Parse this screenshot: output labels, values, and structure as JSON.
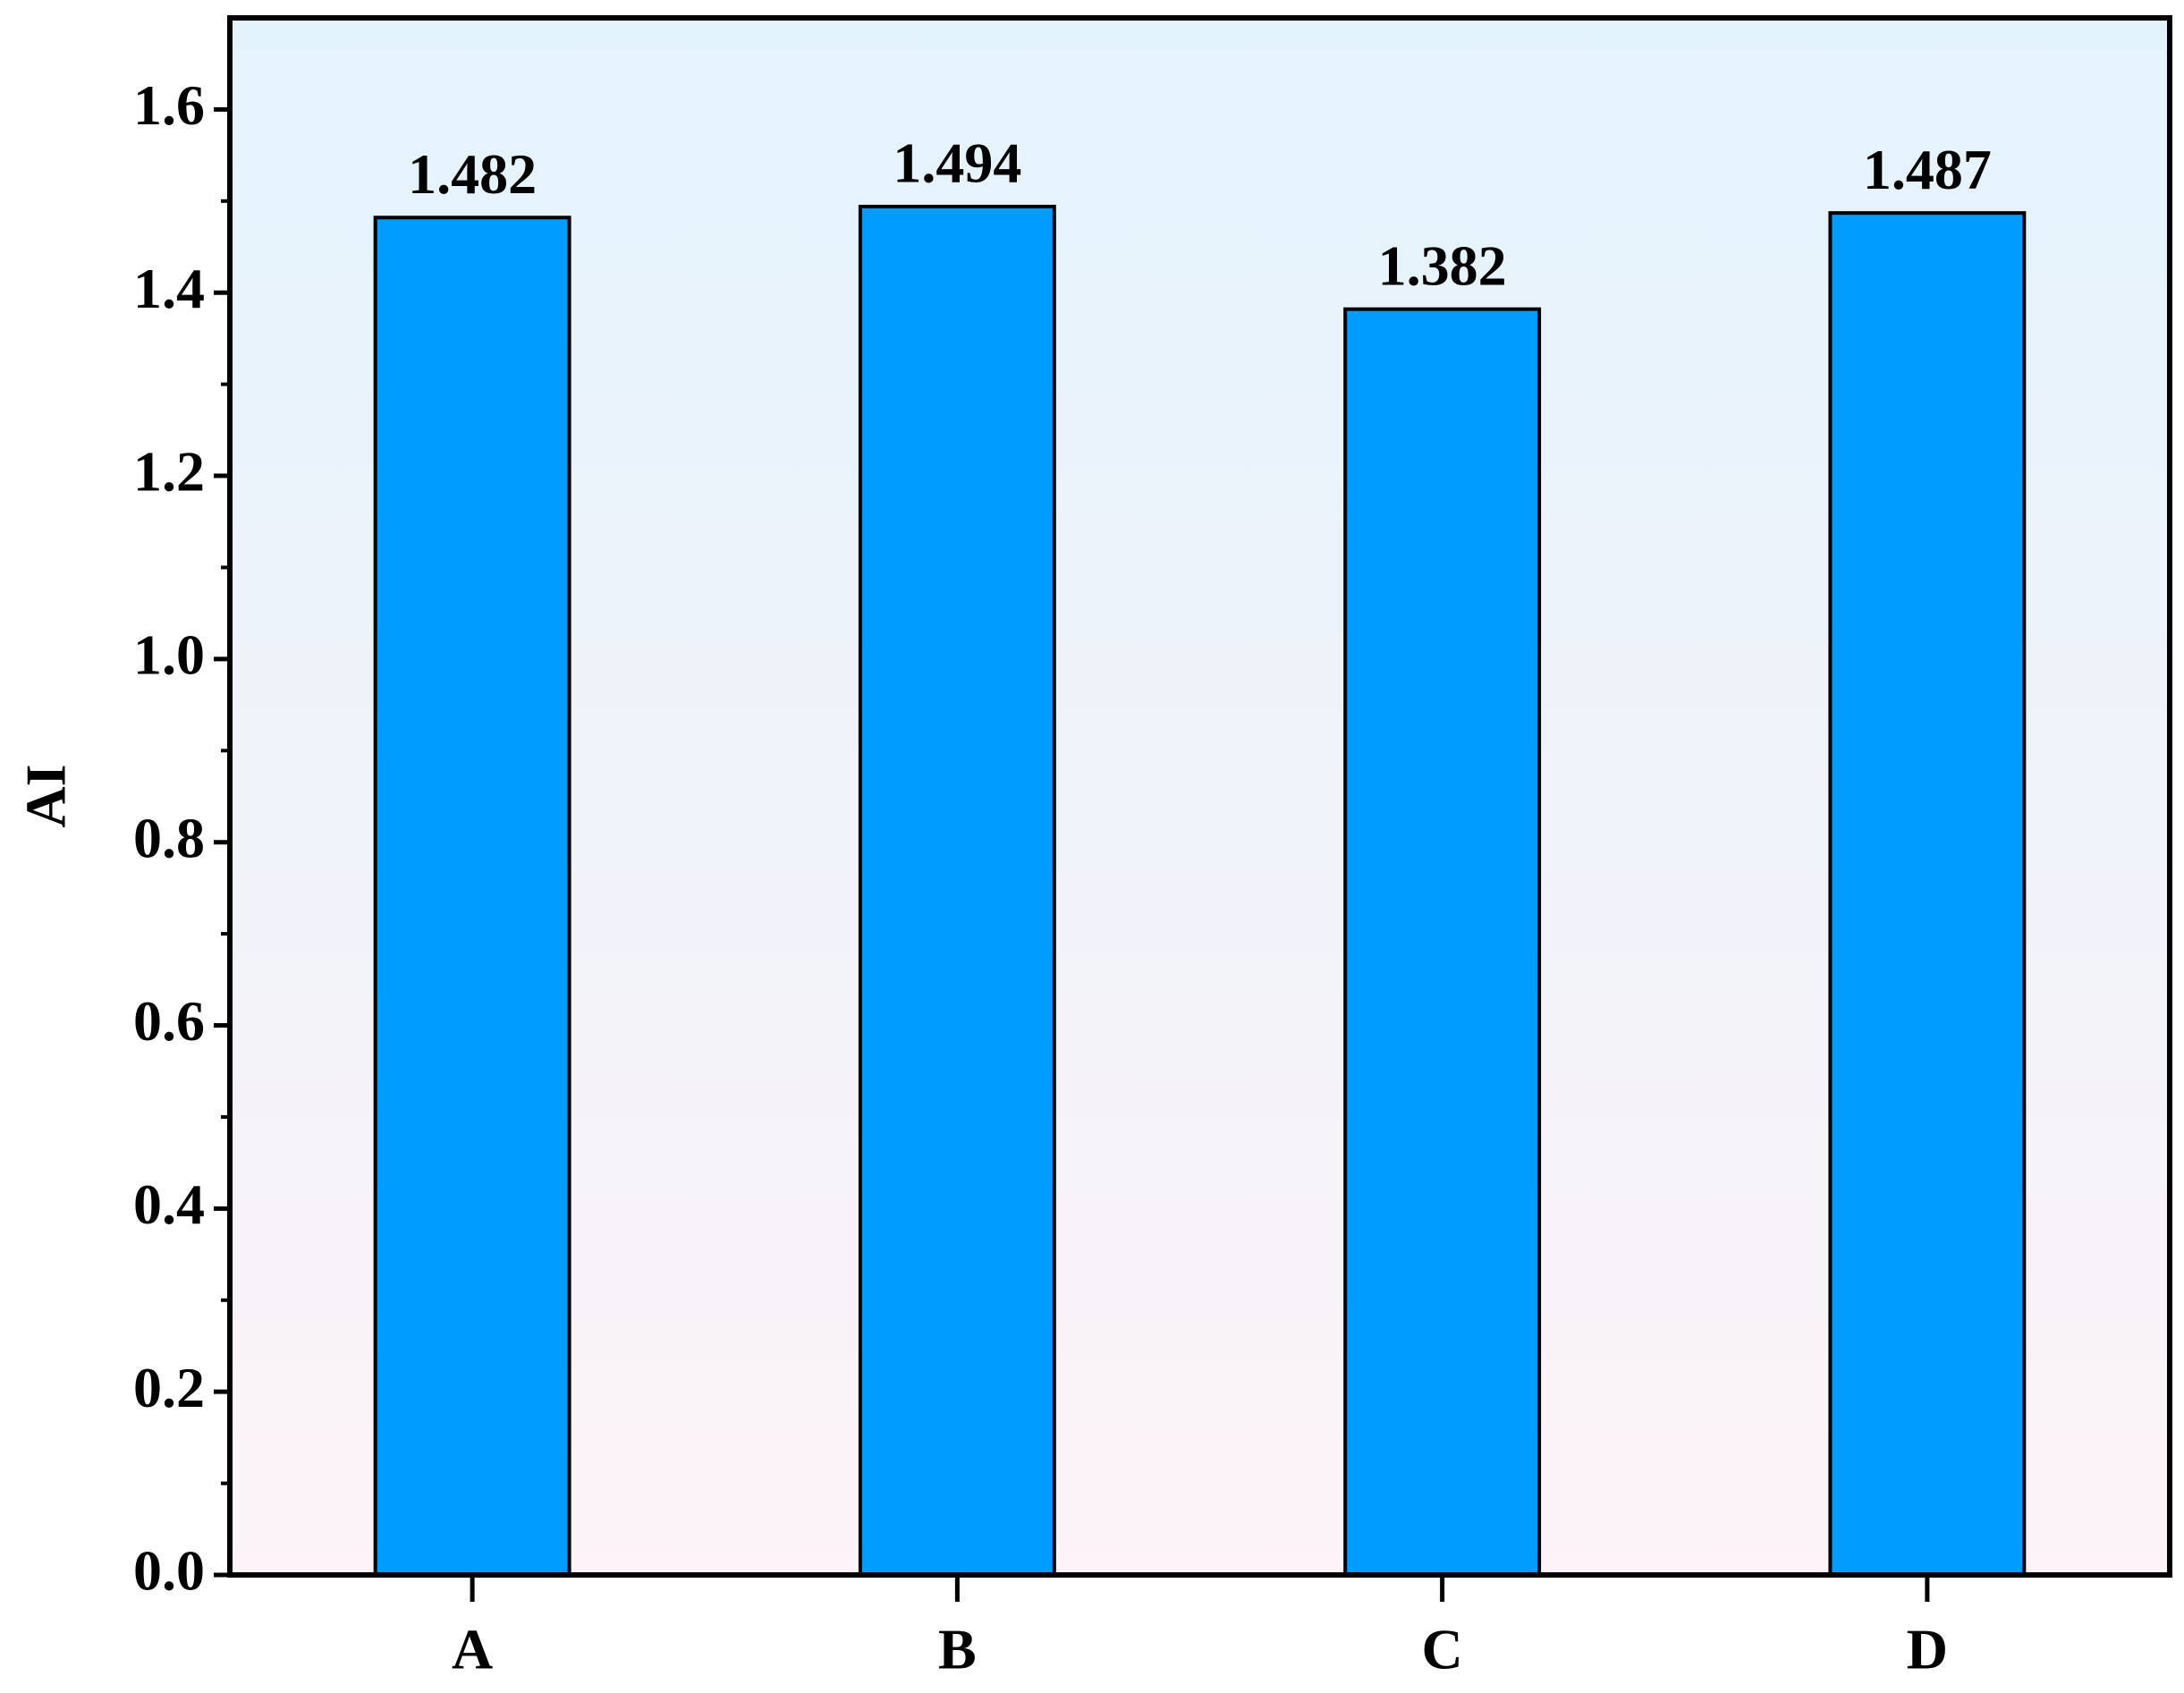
{
  "chart_data": {
    "type": "bar",
    "y_label": "AI",
    "categories": [
      "A",
      "B",
      "C",
      "D"
    ],
    "values": [
      1.482,
      1.494,
      1.382,
      1.487
    ],
    "color": "#009cff",
    "ylim": [
      0,
      1.7
    ],
    "yticks": [
      {
        "value": 0,
        "label": "0.0"
      },
      0.2,
      0.4,
      0.6,
      0.8,
      {
        "value": 1,
        "label": "1.0"
      },
      1.2,
      1.4,
      1.6
    ],
    "grid": false,
    "data_labels": true
  }
}
